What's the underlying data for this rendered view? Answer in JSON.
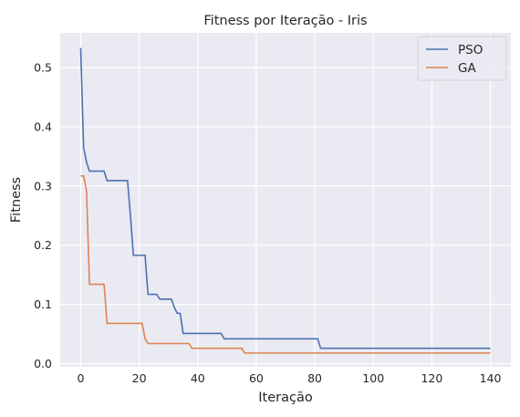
{
  "chart_data": {
    "type": "line",
    "title": "Fitness por Iteração - Iris",
    "xlabel": "Iteração",
    "ylabel": "Fitness",
    "xlim": [
      -7,
      147
    ],
    "ylim": [
      -0.0053,
      0.5585
    ],
    "xticks": [
      0,
      20,
      40,
      60,
      80,
      100,
      120,
      140
    ],
    "yticks": [
      0.0,
      0.1,
      0.2,
      0.3,
      0.4,
      0.5
    ],
    "ytick_labels": [
      "0.0",
      "0.1",
      "0.2",
      "0.3",
      "0.4",
      "0.5"
    ],
    "grid": true,
    "legend_position": "top-right",
    "series": [
      {
        "name": "PSO",
        "color": "#4c72b0",
        "points": [
          [
            0,
            0.533
          ],
          [
            1,
            0.365
          ],
          [
            2,
            0.34
          ],
          [
            3,
            0.325
          ],
          [
            8,
            0.325
          ],
          [
            9,
            0.309
          ],
          [
            15,
            0.309
          ],
          [
            16,
            0.309
          ],
          [
            17,
            0.25
          ],
          [
            18,
            0.183
          ],
          [
            21,
            0.183
          ],
          [
            22,
            0.183
          ],
          [
            23,
            0.117
          ],
          [
            26,
            0.117
          ],
          [
            27,
            0.109
          ],
          [
            31,
            0.109
          ],
          [
            32,
            0.095
          ],
          [
            33,
            0.085
          ],
          [
            34,
            0.085
          ],
          [
            35,
            0.051
          ],
          [
            48,
            0.051
          ],
          [
            49,
            0.042
          ],
          [
            81,
            0.042
          ],
          [
            82,
            0.026
          ],
          [
            140,
            0.026
          ]
        ]
      },
      {
        "name": "GA",
        "color": "#dd8452",
        "points": [
          [
            0,
            0.317
          ],
          [
            1,
            0.317
          ],
          [
            2,
            0.292
          ],
          [
            3,
            0.134
          ],
          [
            8,
            0.134
          ],
          [
            9,
            0.068
          ],
          [
            20,
            0.068
          ],
          [
            21,
            0.068
          ],
          [
            22,
            0.042
          ],
          [
            23,
            0.034
          ],
          [
            37,
            0.034
          ],
          [
            38,
            0.026
          ],
          [
            55,
            0.026
          ],
          [
            56,
            0.018
          ],
          [
            140,
            0.018
          ]
        ]
      }
    ]
  }
}
